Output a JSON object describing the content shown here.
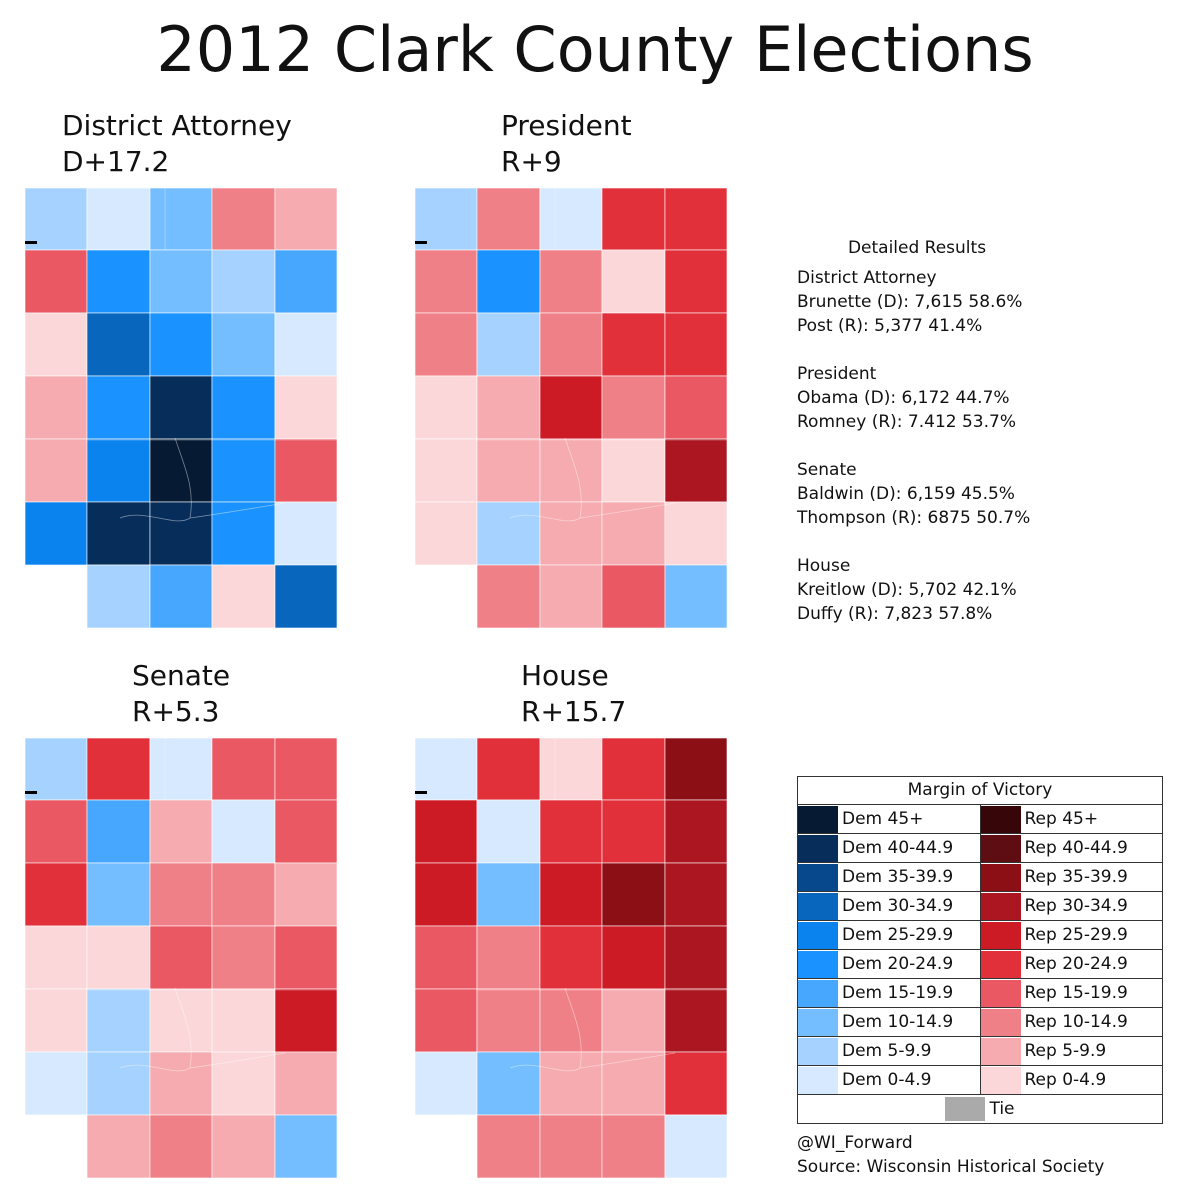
{
  "title": "2012 Clark County Elections",
  "colors": {
    "D0": "#d6e9ff",
    "D1": "#a6d2ff",
    "D2": "#74bdff",
    "D3": "#47a7ff",
    "D4": "#1a92ff",
    "D5": "#0a83ef",
    "D6": "#0866bd",
    "D7": "#07478c",
    "D8": "#072e5b",
    "D9": "#061a33",
    "R0": "#fbd7d9",
    "R1": "#f6abb0",
    "R2": "#f08087",
    "R3": "#ea5963",
    "R4": "#e2303b",
    "R5": "#cd1b26",
    "R6": "#ac1620",
    "R7": "#8c0f16",
    "R8": "#5e0d12",
    "R9": "#360608",
    "tie": "#aaaaaa"
  },
  "maps": [
    {
      "name": "District Attorney",
      "margin": "D+17.2",
      "rows": [
        [
          "D1",
          "D0",
          "D2",
          "R2",
          "R1"
        ],
        [
          "R3",
          "D4",
          "D2",
          "D1",
          "D3"
        ],
        [
          "R0",
          "D6",
          "D4",
          "D2",
          "D0"
        ],
        [
          "R1",
          "D4",
          "D8",
          "D4",
          "R0"
        ],
        [
          "R1",
          "D5",
          "D9",
          "D4",
          "R3"
        ],
        [
          "D5",
          "D8",
          "D8",
          "D4",
          "D0"
        ],
        [
          null,
          "D1",
          "D3",
          "R0",
          "D6"
        ]
      ]
    },
    {
      "name": "President",
      "margin": "R+9",
      "rows": [
        [
          "D1",
          "R2",
          "D0",
          "R4",
          "R4"
        ],
        [
          "R2",
          "D4",
          "R2",
          "R0",
          "R4"
        ],
        [
          "R2",
          "D1",
          "R2",
          "R4",
          "R4"
        ],
        [
          "R0",
          "R1",
          "R5",
          "R2",
          "R3"
        ],
        [
          "R0",
          "R1",
          "R1",
          "R0",
          "R6"
        ],
        [
          "R0",
          "D1",
          "R1",
          "R1",
          "R0"
        ],
        [
          null,
          "R2",
          "R1",
          "R3",
          "D2"
        ]
      ]
    },
    {
      "name": "Senate",
      "margin": "R+5.3",
      "rows": [
        [
          "D1",
          "R4",
          "D0",
          "R3",
          "R3"
        ],
        [
          "R3",
          "D3",
          "R1",
          "D0",
          "R3"
        ],
        [
          "R4",
          "D2",
          "R2",
          "R2",
          "R1"
        ],
        [
          "R0",
          "R0",
          "R3",
          "R2",
          "R3"
        ],
        [
          "R0",
          "D1",
          "R0",
          "R0",
          "R5"
        ],
        [
          "D0",
          "D1",
          "R1",
          "R0",
          "R1"
        ],
        [
          null,
          "R1",
          "R2",
          "R1",
          "D2"
        ]
      ]
    },
    {
      "name": "House",
      "margin": "R+15.7",
      "rows": [
        [
          "D0",
          "R4",
          "R0",
          "R4",
          "R7"
        ],
        [
          "R5",
          "D0",
          "R4",
          "R4",
          "R6"
        ],
        [
          "R5",
          "D2",
          "R5",
          "R7",
          "R6"
        ],
        [
          "R3",
          "R2",
          "R4",
          "R5",
          "R6"
        ],
        [
          "R3",
          "R2",
          "R2",
          "R1",
          "R6"
        ],
        [
          "D0",
          "D2",
          "R1",
          "R1",
          "R4"
        ],
        [
          null,
          "R2",
          "R2",
          "R2",
          "D0"
        ]
      ]
    }
  ],
  "details": {
    "heading": "Detailed Results",
    "races": [
      {
        "name": "District Attorney",
        "lines": [
          "Brunette (D): 7,615 58.6%",
          "Post (R): 5,377 41.4%"
        ]
      },
      {
        "name": "President",
        "lines": [
          "Obama (D): 6,172 44.7%",
          "Romney (R): 7.412 53.7%"
        ]
      },
      {
        "name": "Senate",
        "lines": [
          "Baldwin (D): 6,159 45.5%",
          "Thompson (R): 6875 50.7%"
        ]
      },
      {
        "name": "House",
        "lines": [
          "Kreitlow (D): 5,702 42.1%",
          "Duffy (R): 7,823 57.8%"
        ]
      }
    ]
  },
  "legend": {
    "title": "Margin of Victory",
    "rows": [
      {
        "dem": "Dem 45+",
        "dem_color": "D9",
        "rep": "Rep 45+",
        "rep_color": "R9"
      },
      {
        "dem": "Dem 40-44.9",
        "dem_color": "D8",
        "rep": "Rep 40-44.9",
        "rep_color": "R8"
      },
      {
        "dem": "Dem 35-39.9",
        "dem_color": "D7",
        "rep": "Rep 35-39.9",
        "rep_color": "R7"
      },
      {
        "dem": "Dem 30-34.9",
        "dem_color": "D6",
        "rep": "Rep 30-34.9",
        "rep_color": "R6"
      },
      {
        "dem": "Dem 25-29.9",
        "dem_color": "D5",
        "rep": "Rep 25-29.9",
        "rep_color": "R5"
      },
      {
        "dem": "Dem 20-24.9",
        "dem_color": "D4",
        "rep": "Rep 20-24.9",
        "rep_color": "R4"
      },
      {
        "dem": "Dem 15-19.9",
        "dem_color": "D3",
        "rep": "Rep 15-19.9",
        "rep_color": "R3"
      },
      {
        "dem": "Dem 10-14.9",
        "dem_color": "D2",
        "rep": "Rep 10-14.9",
        "rep_color": "R2"
      },
      {
        "dem": "Dem 5-9.9",
        "dem_color": "D1",
        "rep": "Rep 5-9.9",
        "rep_color": "R1"
      },
      {
        "dem": "Dem 0-4.9",
        "dem_color": "D0",
        "rep": "Rep 0-4.9",
        "rep_color": "R0"
      }
    ],
    "tie": "Tie"
  },
  "credits": {
    "handle": "@WI_Forward",
    "source": "Source: Wisconsin Historical Society"
  }
}
